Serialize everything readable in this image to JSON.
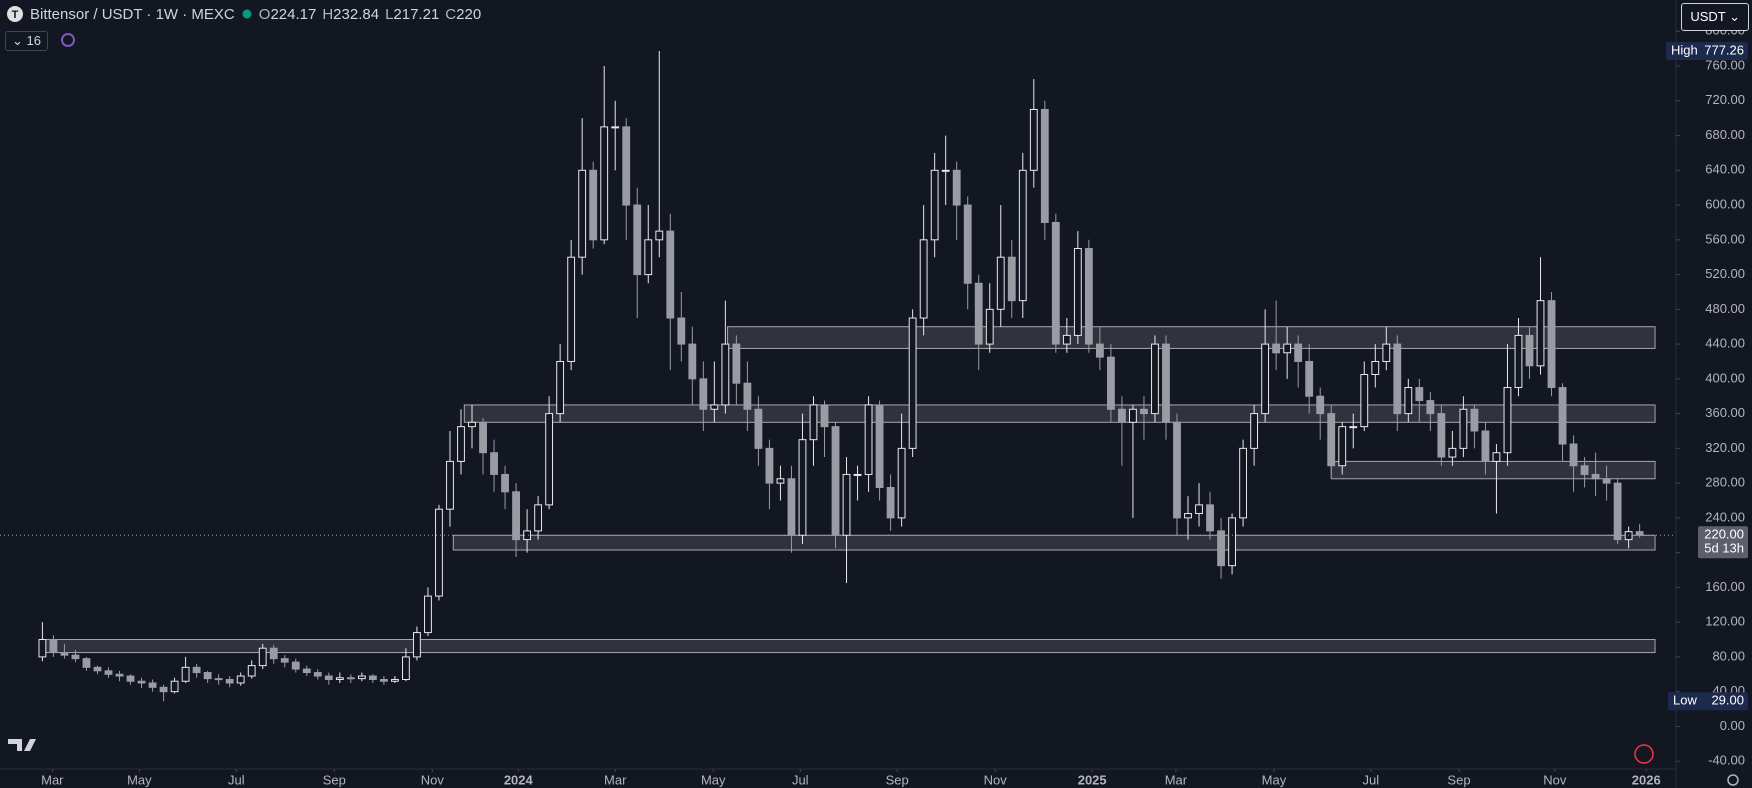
{
  "header": {
    "symbol": "Bittensor / USDT · 1W · MEXC",
    "ohlc_prefixes": [
      "O",
      "H",
      "L",
      "C"
    ],
    "indicator_value": "16",
    "currency": "USDT",
    "countdown": "5d 13h",
    "high_tag": "High",
    "low_tag": "Low"
  },
  "chart_data": {
    "type": "candlestick",
    "up_color": "#e8e8ea",
    "down_color": "#9a9ca3",
    "background": "#131722",
    "zone_color": "#9a9ca3",
    "xlim": [
      -3.85,
      148.3
    ],
    "ylim": [
      -49,
      836
    ],
    "xticks": [
      {
        "value": 0.9,
        "label": "Mar"
      },
      {
        "value": 8.8,
        "label": "May"
      },
      {
        "value": 17.6,
        "label": "Jul"
      },
      {
        "value": 26.5,
        "label": "Sep"
      },
      {
        "value": 35.4,
        "label": "Nov"
      },
      {
        "value": 43.2,
        "label": "2024"
      },
      {
        "value": 52.0,
        "label": "Mar"
      },
      {
        "value": 60.9,
        "label": "May"
      },
      {
        "value": 68.8,
        "label": "Jul"
      },
      {
        "value": 77.6,
        "label": "Sep"
      },
      {
        "value": 86.5,
        "label": "Nov"
      },
      {
        "value": 95.3,
        "label": "2025"
      },
      {
        "value": 102.9,
        "label": "Mar"
      },
      {
        "value": 111.8,
        "label": "May"
      },
      {
        "value": 120.6,
        "label": "Jul"
      },
      {
        "value": 128.6,
        "label": "Sep"
      },
      {
        "value": 137.3,
        "label": "Nov"
      },
      {
        "value": 145.6,
        "label": "2026"
      }
    ],
    "yticks": [
      {
        "value": -40,
        "label": "-40.00"
      },
      {
        "value": 0,
        "label": "0.00"
      },
      {
        "value": 40,
        "label": "40.00"
      },
      {
        "value": 80,
        "label": "80.00"
      },
      {
        "value": 120,
        "label": "120.00"
      },
      {
        "value": 160,
        "label": "160.00"
      },
      {
        "value": 200,
        "label": "200.00"
      },
      {
        "value": 240,
        "label": "240.00"
      },
      {
        "value": 280,
        "label": "280.00"
      },
      {
        "value": 320,
        "label": "320.00"
      },
      {
        "value": 360,
        "label": "360.00"
      },
      {
        "value": 400,
        "label": "400.00"
      },
      {
        "value": 440,
        "label": "440.00"
      },
      {
        "value": 480,
        "label": "480.00"
      },
      {
        "value": 520,
        "label": "520.00"
      },
      {
        "value": 560,
        "label": "560.00"
      },
      {
        "value": 600,
        "label": "600.00"
      },
      {
        "value": 640,
        "label": "640.00"
      },
      {
        "value": 680,
        "label": "680.00"
      },
      {
        "value": 720,
        "label": "720.00"
      },
      {
        "value": 760,
        "label": "760.00"
      },
      {
        "value": 800,
        "label": "800.00"
      }
    ],
    "open": [
      80,
      100,
      85,
      82,
      78,
      68,
      64,
      60,
      58,
      52,
      50,
      45,
      40,
      52,
      68,
      62,
      55,
      54,
      50,
      58,
      70,
      90,
      78,
      74,
      66,
      62,
      58,
      54,
      56,
      55,
      58,
      54,
      52,
      54,
      80,
      108,
      150,
      250,
      305,
      345,
      350,
      315,
      290,
      270,
      215,
      225,
      255,
      360,
      420,
      540,
      640,
      560,
      690,
      690,
      600,
      520,
      560,
      570,
      470,
      440,
      400,
      365,
      370,
      440,
      395,
      365,
      320,
      280,
      285,
      220,
      330,
      370,
      345,
      220,
      290,
      290,
      370,
      275,
      240,
      320,
      470,
      560,
      640,
      640,
      600,
      510,
      440,
      480,
      540,
      490,
      640,
      710,
      580,
      440,
      450,
      550,
      440,
      425,
      365,
      350,
      365,
      360,
      440,
      350,
      240,
      245,
      255,
      225,
      185,
      240,
      320,
      360,
      440,
      430,
      440,
      420,
      380,
      360,
      300,
      345,
      345,
      405,
      420,
      440,
      360,
      390,
      375,
      360,
      310,
      320,
      365,
      340,
      305,
      315,
      390,
      450,
      415,
      490,
      390,
      325,
      300,
      290,
      285,
      280,
      215,
      224.17
    ],
    "high": [
      120,
      105,
      95,
      88,
      80,
      70,
      68,
      64,
      60,
      56,
      54,
      48,
      56,
      80,
      72,
      64,
      60,
      58,
      62,
      76,
      95,
      94,
      82,
      78,
      70,
      66,
      62,
      62,
      60,
      62,
      60,
      58,
      58,
      90,
      115,
      160,
      255,
      340,
      365,
      370,
      355,
      330,
      300,
      280,
      250,
      265,
      380,
      440,
      560,
      700,
      650,
      760,
      720,
      700,
      620,
      600,
      777.26,
      590,
      500,
      460,
      420,
      420,
      490,
      450,
      420,
      380,
      330,
      300,
      300,
      360,
      380,
      375,
      350,
      310,
      300,
      380,
      375,
      290,
      360,
      480,
      600,
      660,
      680,
      650,
      610,
      520,
      510,
      600,
      560,
      660,
      745,
      720,
      590,
      470,
      570,
      560,
      460,
      440,
      380,
      370,
      380,
      450,
      450,
      360,
      265,
      280,
      270,
      240,
      245,
      330,
      370,
      480,
      490,
      460,
      450,
      440,
      390,
      370,
      350,
      360,
      420,
      440,
      460,
      450,
      400,
      400,
      385,
      370,
      340,
      380,
      370,
      350,
      325,
      440,
      470,
      460,
      540,
      500,
      395,
      335,
      310,
      315,
      300,
      285,
      230,
      232.84
    ],
    "low": [
      75,
      80,
      78,
      74,
      64,
      60,
      56,
      52,
      48,
      44,
      40,
      29,
      38,
      50,
      56,
      50,
      48,
      45,
      47,
      55,
      66,
      72,
      68,
      62,
      58,
      54,
      48,
      50,
      50,
      52,
      50,
      48,
      50,
      52,
      76,
      104,
      145,
      230,
      290,
      320,
      290,
      270,
      250,
      195,
      200,
      215,
      250,
      350,
      410,
      520,
      550,
      555,
      640,
      560,
      470,
      510,
      540,
      410,
      420,
      370,
      340,
      350,
      360,
      370,
      340,
      300,
      250,
      260,
      200,
      210,
      300,
      310,
      205,
      165,
      260,
      270,
      260,
      225,
      230,
      310,
      450,
      540,
      600,
      560,
      480,
      410,
      430,
      460,
      470,
      470,
      620,
      560,
      430,
      430,
      440,
      430,
      410,
      350,
      300,
      240,
      330,
      350,
      330,
      220,
      215,
      230,
      215,
      170,
      175,
      230,
      300,
      350,
      410,
      400,
      390,
      360,
      330,
      290,
      290,
      320,
      340,
      390,
      410,
      340,
      350,
      350,
      340,
      300,
      300,
      310,
      320,
      290,
      245,
      300,
      380,
      400,
      405,
      380,
      305,
      270,
      275,
      265,
      260,
      210,
      205,
      217.21
    ],
    "close": [
      100,
      85,
      82,
      78,
      68,
      64,
      60,
      58,
      52,
      50,
      45,
      40,
      52,
      68,
      62,
      55,
      54,
      50,
      58,
      70,
      90,
      78,
      74,
      66,
      62,
      58,
      54,
      56,
      55,
      58,
      54,
      52,
      54,
      80,
      108,
      150,
      250,
      305,
      345,
      350,
      315,
      290,
      270,
      215,
      225,
      255,
      360,
      420,
      540,
      640,
      560,
      690,
      690,
      600,
      520,
      560,
      570,
      470,
      440,
      400,
      365,
      370,
      440,
      395,
      365,
      320,
      280,
      285,
      220,
      330,
      370,
      345,
      220,
      290,
      290,
      370,
      275,
      240,
      320,
      470,
      560,
      640,
      640,
      600,
      510,
      440,
      480,
      540,
      490,
      640,
      710,
      580,
      440,
      450,
      550,
      440,
      425,
      365,
      350,
      365,
      360,
      440,
      350,
      240,
      245,
      255,
      225,
      185,
      240,
      320,
      360,
      440,
      430,
      440,
      420,
      380,
      360,
      300,
      345,
      345,
      405,
      420,
      440,
      360,
      390,
      375,
      360,
      310,
      320,
      365,
      340,
      305,
      315,
      390,
      450,
      415,
      490,
      390,
      325,
      300,
      290,
      285,
      280,
      215,
      224.17,
      220
    ],
    "last_price_label": "220.00",
    "low_label": "29.00",
    "zones": [
      {
        "x0": 62.2,
        "x1": 146.4,
        "low": 435,
        "high": 460
      },
      {
        "x0": 38.3,
        "x1": 146.4,
        "low": 350,
        "high": 370
      },
      {
        "x0": 117,
        "x1": 146.4,
        "low": 285,
        "high": 305
      },
      {
        "x0": 37.3,
        "x1": 146.4,
        "low": 203,
        "high": 220
      },
      {
        "x0": -0.2,
        "x1": 146.4,
        "low": 85,
        "high": 100
      }
    ]
  }
}
